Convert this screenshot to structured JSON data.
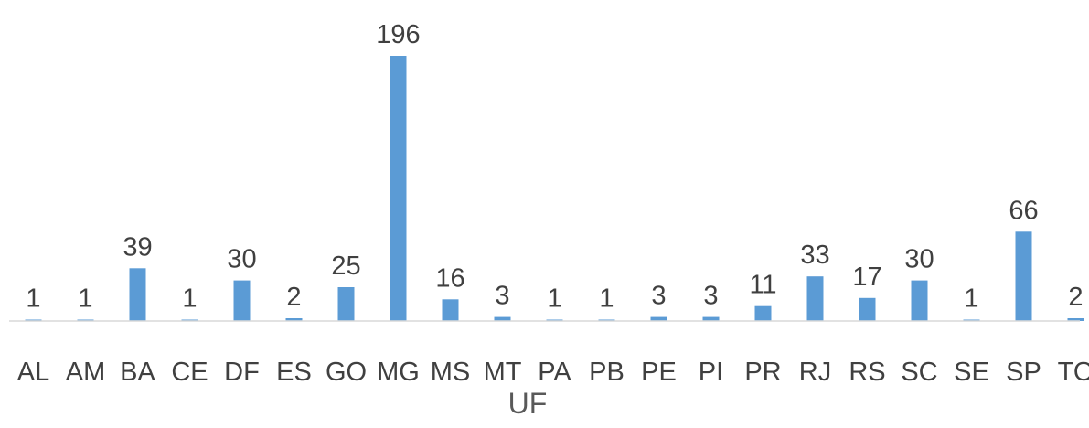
{
  "chart_data": {
    "type": "bar",
    "categories": [
      "AL",
      "AM",
      "BA",
      "CE",
      "DF",
      "ES",
      "GO",
      "MG",
      "MS",
      "MT",
      "PA",
      "PB",
      "PE",
      "PI",
      "PR",
      "RJ",
      "RS",
      "SC",
      "SE",
      "SP",
      "TO"
    ],
    "values": [
      1,
      1,
      39,
      1,
      30,
      2,
      25,
      196,
      16,
      3,
      1,
      1,
      3,
      3,
      11,
      33,
      17,
      30,
      1,
      66,
      2
    ],
    "title": "",
    "xlabel": "UF",
    "ylabel": "",
    "ylim": [
      0,
      196
    ],
    "grid": false,
    "legend": "none",
    "data_labels": true,
    "bar_color": "#5b9bd5",
    "axis_color": "#d9d9d9",
    "text_color": "#404040",
    "axis_title_color": "#595959"
  }
}
